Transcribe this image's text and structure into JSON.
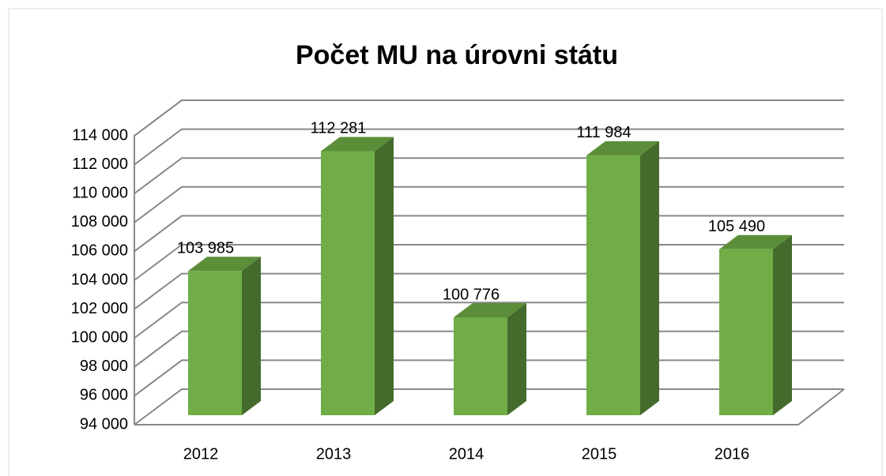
{
  "chart_data": {
    "type": "bar3d",
    "title": "Počet MU na úrovni státu",
    "categories": [
      "2012",
      "2013",
      "2014",
      "2015",
      "2016"
    ],
    "values": [
      103985,
      112281,
      100776,
      111984,
      105490
    ],
    "value_labels": [
      "103 985",
      "112 281",
      "100 776",
      "111 984",
      "105 490"
    ],
    "color": "#70ad47",
    "ylim": [
      94000,
      114000
    ],
    "yticks": [
      {
        "value": 94000,
        "label": "94 000"
      },
      {
        "value": 96000,
        "label": "96 000"
      },
      {
        "value": 98000,
        "label": "98 000"
      },
      {
        "value": 100000,
        "label": "100 000"
      },
      {
        "value": 102000,
        "label": "102 000"
      },
      {
        "value": 104000,
        "label": "104 000"
      },
      {
        "value": 106000,
        "label": "106 000"
      },
      {
        "value": 108000,
        "label": "108 000"
      },
      {
        "value": 110000,
        "label": "110 000"
      },
      {
        "value": 112000,
        "label": "112 000"
      },
      {
        "value": 114000,
        "label": "114 000"
      }
    ],
    "grid": true
  }
}
